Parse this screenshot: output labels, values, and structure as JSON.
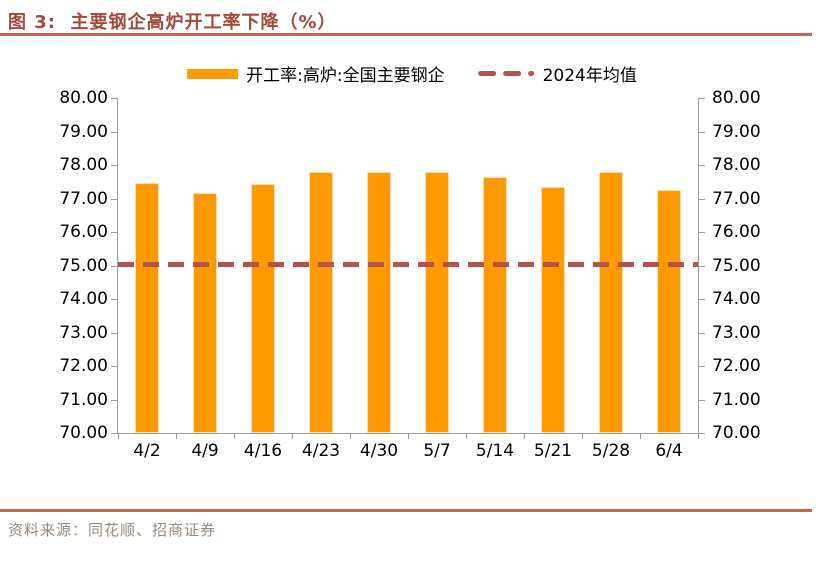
{
  "header": {
    "title": "图 3:  主要钢企高炉开工率下降（%）"
  },
  "legend": {
    "items": [
      {
        "label": "开工率:高炉:全国主要钢企",
        "marker": "bar-swatch"
      },
      {
        "label": "2024年均值",
        "marker": "dash-swatch"
      }
    ]
  },
  "footer": {
    "source": "资料来源：同花顺、招商证券"
  },
  "colors": {
    "bar": "#FF9900",
    "barBorder": "#FADCB3",
    "avg": "#B5524B",
    "title": "#A6483A",
    "rule": "#C2674E",
    "src": "#95897B",
    "axis": "#9B9B9B"
  },
  "chart_data": {
    "type": "bar",
    "title": "图 3: 主要钢企高炉开工率下降（%）",
    "categories": [
      "4/2",
      "4/9",
      "4/16",
      "4/23",
      "4/30",
      "5/7",
      "5/14",
      "5/21",
      "5/28",
      "6/4"
    ],
    "series": [
      {
        "name": "开工率:高炉:全国主要钢企",
        "values": [
          77.47,
          77.15,
          77.42,
          77.78,
          77.78,
          77.78,
          77.65,
          77.35,
          77.78,
          77.25
        ]
      }
    ],
    "average_line": {
      "name": "2024年均值",
      "value": 75.04
    },
    "xlabel": "",
    "ylabel": "",
    "ylim": [
      70,
      80
    ],
    "ytick_step": 1,
    "ytick_decimals": 2,
    "y_axis_sides": [
      "left",
      "right"
    ],
    "grid": false,
    "legend_position": "top"
  }
}
